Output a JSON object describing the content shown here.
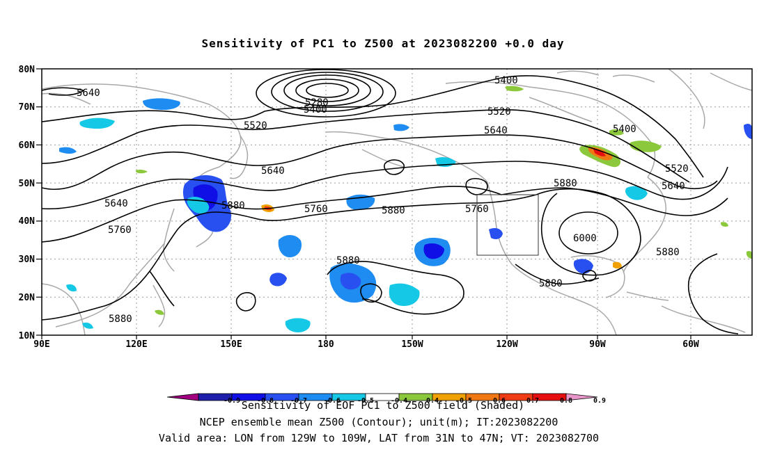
{
  "title": "Sensitivity of PC1 to Z500 at 2023082200 +0.0 day",
  "lat_labels": [
    "80N",
    "70N",
    "60N",
    "50N",
    "40N",
    "30N",
    "20N",
    "10N"
  ],
  "lon_labels": [
    "90E",
    "120E",
    "150E",
    "180",
    "150W",
    "120W",
    "90W",
    "60W"
  ],
  "contour_labels": [
    {
      "text": "5640"
    },
    {
      "text": "5280"
    },
    {
      "text": "5400"
    },
    {
      "text": "5400"
    },
    {
      "text": "5520"
    },
    {
      "text": "5520"
    },
    {
      "text": "5640"
    },
    {
      "text": "5400"
    },
    {
      "text": "5640"
    },
    {
      "text": "5520"
    },
    {
      "text": "5880"
    },
    {
      "text": "5640"
    },
    {
      "text": "5640"
    },
    {
      "text": "5880"
    },
    {
      "text": "5760"
    },
    {
      "text": "5880"
    },
    {
      "text": "5760"
    },
    {
      "text": "5760"
    },
    {
      "text": "6000"
    },
    {
      "text": "5880"
    },
    {
      "text": "5880"
    },
    {
      "text": "5880"
    },
    {
      "text": "5880"
    }
  ],
  "colorbar": {
    "colors": [
      "#a0007f",
      "#1e1ea8",
      "#0f0fe6",
      "#2850f0",
      "#1e8cf0",
      "#14c8e6",
      "#ffffff",
      "#8cc83c",
      "#f0a000",
      "#f07814",
      "#f03c14",
      "#e60f0f",
      "#e696c8"
    ],
    "tick_labels": [
      "-0.9",
      "-0.8",
      "-0.7",
      "-0.6",
      "-0.5",
      "-0.4",
      "0.4",
      "0.5",
      "0.6",
      "0.7",
      "0.8",
      "0.9"
    ]
  },
  "footer": {
    "line1": "Sensitivity of EOF PC1 to Z500 field (Shaded)",
    "line2": "NCEP ensemble mean Z500 (Contour); unit(m); IT:2023082200",
    "line3": "Valid area: LON from 129W to 109W, LAT from 31N to 47N; VT: 2023082700"
  }
}
